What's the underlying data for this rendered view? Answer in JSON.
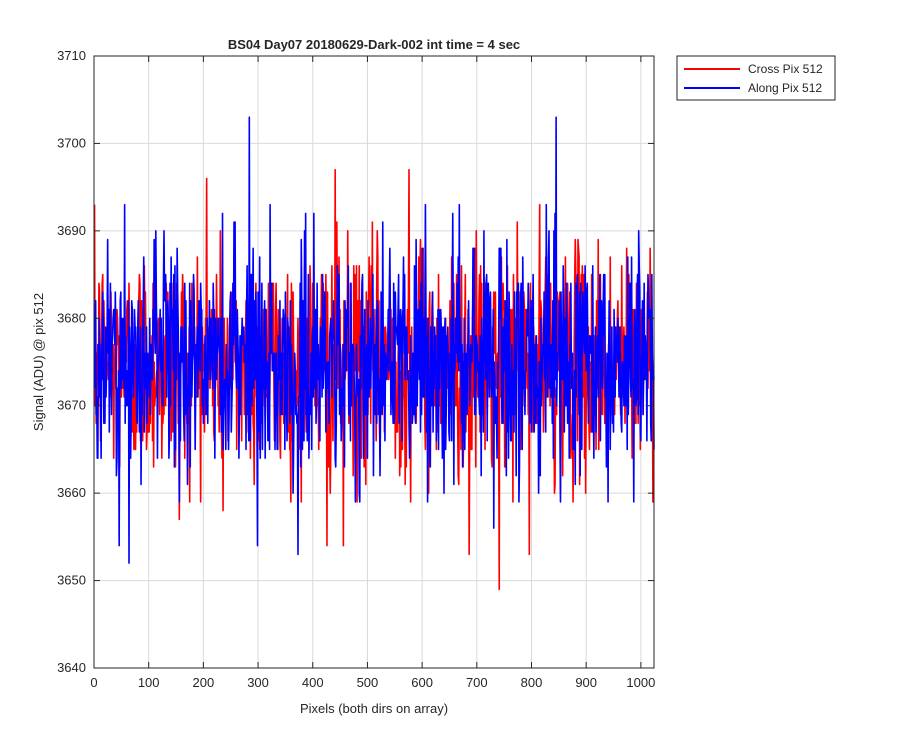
{
  "chart_data": {
    "type": "line",
    "title": "BS04 Day07 20180629-Dark-002 int time = 4 sec",
    "xlabel": "Pixels (both dirs on array)",
    "ylabel": "Signal (ADU) @ pix 512",
    "xlim": [
      0,
      1024
    ],
    "ylim": [
      3640,
      3710
    ],
    "xticks": [
      0,
      100,
      200,
      300,
      400,
      500,
      600,
      700,
      800,
      900,
      1000
    ],
    "yticks": [
      3640,
      3650,
      3660,
      3670,
      3680,
      3690,
      3700,
      3710
    ],
    "grid": true,
    "legend_position": "outside-top-right",
    "series": [
      {
        "name": "Cross Pix 512",
        "color": "#ff0000",
        "mean": 3675,
        "sd": 6.5,
        "n": 1024,
        "extremes": [
          {
            "x": 205,
            "y": 3696
          },
          {
            "x": 440,
            "y": 3697
          },
          {
            "x": 575,
            "y": 3697
          },
          {
            "x": 740,
            "y": 3649
          },
          {
            "x": 795,
            "y": 3653
          },
          {
            "x": 685,
            "y": 3653
          },
          {
            "x": 155,
            "y": 3657
          },
          {
            "x": 235,
            "y": 3658
          },
          {
            "x": 425,
            "y": 3654
          },
          {
            "x": 455,
            "y": 3654
          }
        ]
      },
      {
        "name": "Along Pix 512",
        "color": "#0000ff",
        "mean": 3675,
        "sd": 6.5,
        "n": 1024,
        "extremes": [
          {
            "x": 283,
            "y": 3703
          },
          {
            "x": 844,
            "y": 3703
          },
          {
            "x": 63,
            "y": 3652
          },
          {
            "x": 45,
            "y": 3654
          },
          {
            "x": 298,
            "y": 3654
          },
          {
            "x": 372,
            "y": 3653
          },
          {
            "x": 730,
            "y": 3656
          },
          {
            "x": 55,
            "y": 3693
          },
          {
            "x": 655,
            "y": 3692
          }
        ]
      }
    ]
  }
}
